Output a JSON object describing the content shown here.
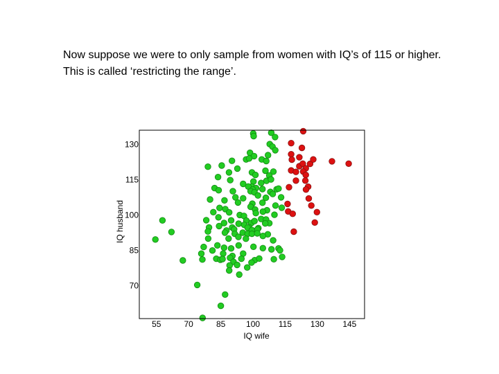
{
  "slide": {
    "caption": "Now suppose we were to only sample from women with IQ’s of 115 or higher. This is called  ‘restricting the range’."
  },
  "colors": {
    "kept": "#22cc22",
    "kept_stroke": "#118811",
    "removed": "#dd1111",
    "removed_stroke": "#881111",
    "frame": "#000000"
  },
  "chart_data": {
    "type": "scatter",
    "xlabel": "IQ wife",
    "ylabel": "IQ husband",
    "xlim": [
      47,
      152
    ],
    "ylim": [
      56,
      136
    ],
    "x_ticks": [
      55,
      70,
      85,
      100,
      115,
      130,
      145
    ],
    "y_ticks": [
      70,
      85,
      100,
      115,
      130
    ],
    "grid": false,
    "series": [
      {
        "values": [
          [
            100.1,
            134.6
          ],
          [
            100.3,
            133.5
          ],
          [
            108.5,
            134.9
          ],
          [
            110.3,
            133.1
          ],
          [
            107.8,
            130.1
          ],
          [
            109.1,
            129.0
          ],
          [
            110.4,
            127.5
          ],
          [
            98.6,
            126.4
          ],
          [
            100.5,
            125.0
          ],
          [
            107.0,
            125.4
          ],
          [
            96.8,
            123.6
          ],
          [
            98.2,
            124.0
          ],
          [
            90.2,
            123.0
          ],
          [
            104.1,
            123.6
          ],
          [
            106.2,
            122.9
          ],
          [
            85.4,
            121.0
          ],
          [
            79.0,
            120.5
          ],
          [
            105.8,
            118.8
          ],
          [
            109.5,
            118.4
          ],
          [
            92.7,
            119.7
          ],
          [
            88.8,
            118.1
          ],
          [
            99.5,
            118.1
          ],
          [
            101.1,
            117.0
          ],
          [
            107.6,
            116.8
          ],
          [
            83.7,
            116.1
          ],
          [
            89.4,
            114.8
          ],
          [
            100.2,
            114.2
          ],
          [
            106.3,
            114.5
          ],
          [
            108.4,
            115.1
          ],
          [
            99.4,
            112.1
          ],
          [
            103.8,
            113.6
          ],
          [
            95.4,
            113.2
          ],
          [
            97.8,
            112.1
          ],
          [
            101.4,
            111.4
          ],
          [
            104.4,
            111.0
          ],
          [
            111.0,
            110.9
          ],
          [
            82.1,
            111.4
          ],
          [
            84.0,
            110.5
          ],
          [
            90.6,
            110.1
          ],
          [
            99.9,
            110.8
          ],
          [
            98.9,
            110.1
          ],
          [
            100.7,
            109.6
          ],
          [
            108.1,
            109.8
          ],
          [
            111.9,
            111.2
          ],
          [
            109.2,
            108.9
          ],
          [
            91.8,
            107.5
          ],
          [
            95.4,
            107.1
          ],
          [
            102.3,
            108.3
          ],
          [
            106.0,
            107.3
          ],
          [
            113.1,
            107.5
          ],
          [
            80.0,
            106.6
          ],
          [
            86.7,
            106.2
          ],
          [
            93.0,
            105.3
          ],
          [
            99.7,
            104.8
          ],
          [
            104.4,
            105.2
          ],
          [
            110.5,
            104.0
          ],
          [
            84.4,
            103.0
          ],
          [
            87.1,
            102.5
          ],
          [
            98.9,
            103.5
          ],
          [
            101.0,
            102.3
          ],
          [
            106.5,
            102.0
          ],
          [
            113.4,
            103.1
          ],
          [
            81.5,
            101.2
          ],
          [
            88.9,
            101.1
          ],
          [
            93.8,
            100.0
          ],
          [
            95.8,
            99.6
          ],
          [
            101.3,
            100.8
          ],
          [
            104.6,
            101.4
          ],
          [
            110.0,
            100.1
          ],
          [
            83.9,
            99.0
          ],
          [
            89.8,
            97.7
          ],
          [
            96.9,
            97.6
          ],
          [
            103.8,
            98.3
          ],
          [
            106.1,
            98.1
          ],
          [
            78.2,
            97.8
          ],
          [
            86.5,
            96.6
          ],
          [
            93.3,
            96.3
          ],
          [
            99.2,
            96.6
          ],
          [
            100.7,
            97.4
          ],
          [
            107.6,
            96.5
          ],
          [
            84.2,
            95.3
          ],
          [
            90.3,
            94.7
          ],
          [
            95.9,
            95.8
          ],
          [
            98.1,
            94.8
          ],
          [
            102.5,
            94.4
          ],
          [
            105.7,
            96.4
          ],
          [
            79.5,
            94.7
          ],
          [
            87.6,
            93.4
          ],
          [
            91.2,
            93.9
          ],
          [
            97.5,
            94.6
          ],
          [
            99.5,
            93.6
          ],
          [
            102.1,
            93.9
          ],
          [
            79.0,
            93.0
          ],
          [
            86.9,
            92.5
          ],
          [
            91.5,
            92.0
          ],
          [
            95.2,
            92.5
          ],
          [
            97.5,
            92.0
          ],
          [
            99.5,
            92.0
          ],
          [
            102.0,
            92.2
          ],
          [
            106.9,
            91.8
          ],
          [
            104.6,
            91.1
          ],
          [
            79.1,
            90.0
          ],
          [
            88.6,
            90.0
          ],
          [
            93.2,
            90.7
          ],
          [
            96.7,
            89.9
          ],
          [
            109.4,
            89.2
          ],
          [
            77.0,
            86.4
          ],
          [
            83.4,
            87.1
          ],
          [
            86.5,
            86.1
          ],
          [
            89.8,
            85.8
          ],
          [
            93.3,
            87.1
          ],
          [
            100.2,
            86.5
          ],
          [
            104.6,
            85.9
          ],
          [
            75.9,
            83.6
          ],
          [
            81.1,
            84.9
          ],
          [
            86.1,
            83.6
          ],
          [
            90.4,
            82.6
          ],
          [
            95.4,
            83.6
          ],
          [
            108.6,
            85.4
          ],
          [
            111.9,
            85.8
          ],
          [
            112.6,
            85.0
          ],
          [
            76.4,
            81.1
          ],
          [
            82.9,
            81.4
          ],
          [
            89.3,
            81.8
          ],
          [
            94.6,
            81.4
          ],
          [
            100.8,
            80.8
          ],
          [
            102.9,
            81.5
          ],
          [
            109.7,
            81.2
          ],
          [
            113.6,
            82.2
          ],
          [
            67.3,
            80.7
          ],
          [
            84.8,
            81.0
          ],
          [
            85.8,
            81.3
          ],
          [
            90.9,
            80.1
          ],
          [
            99.3,
            79.8
          ],
          [
            89.1,
            78.6
          ],
          [
            92.6,
            78.8
          ],
          [
            97.3,
            77.7
          ],
          [
            88.9,
            76.4
          ],
          [
            93.6,
            74.7
          ],
          [
            57.8,
            97.7
          ],
          [
            54.5,
            89.6
          ],
          [
            62.0,
            92.8
          ],
          [
            74.0,
            70.3
          ],
          [
            87.0,
            66.2
          ],
          [
            85.0,
            61.4
          ],
          [
            76.5,
            56.3
          ]
        ]
      },
      {
        "values": [
          [
            123.4,
            135.6
          ],
          [
            117.8,
            130.5
          ],
          [
            122.8,
            128.5
          ],
          [
            117.8,
            125.8
          ],
          [
            118.1,
            123.5
          ],
          [
            121.6,
            124.5
          ],
          [
            121.6,
            120.7
          ],
          [
            123.2,
            121.8
          ],
          [
            126.6,
            121.7
          ],
          [
            124.6,
            119.8
          ],
          [
            128.1,
            123.6
          ],
          [
            144.6,
            121.8
          ],
          [
            136.8,
            122.8
          ],
          [
            117.8,
            118.9
          ],
          [
            120.0,
            118.3
          ],
          [
            123.4,
            118.4
          ],
          [
            124.6,
            117.0
          ],
          [
            120.0,
            114.6
          ],
          [
            124.4,
            114.6
          ],
          [
            125.7,
            112.0
          ],
          [
            116.8,
            111.8
          ],
          [
            124.7,
            110.8
          ],
          [
            126.0,
            107.0
          ],
          [
            116.1,
            104.7
          ],
          [
            127.2,
            104.0
          ],
          [
            116.4,
            101.5
          ],
          [
            118.5,
            100.5
          ],
          [
            129.8,
            101.2
          ],
          [
            128.8,
            96.8
          ],
          [
            119.0,
            92.9
          ]
        ]
      }
    ]
  }
}
